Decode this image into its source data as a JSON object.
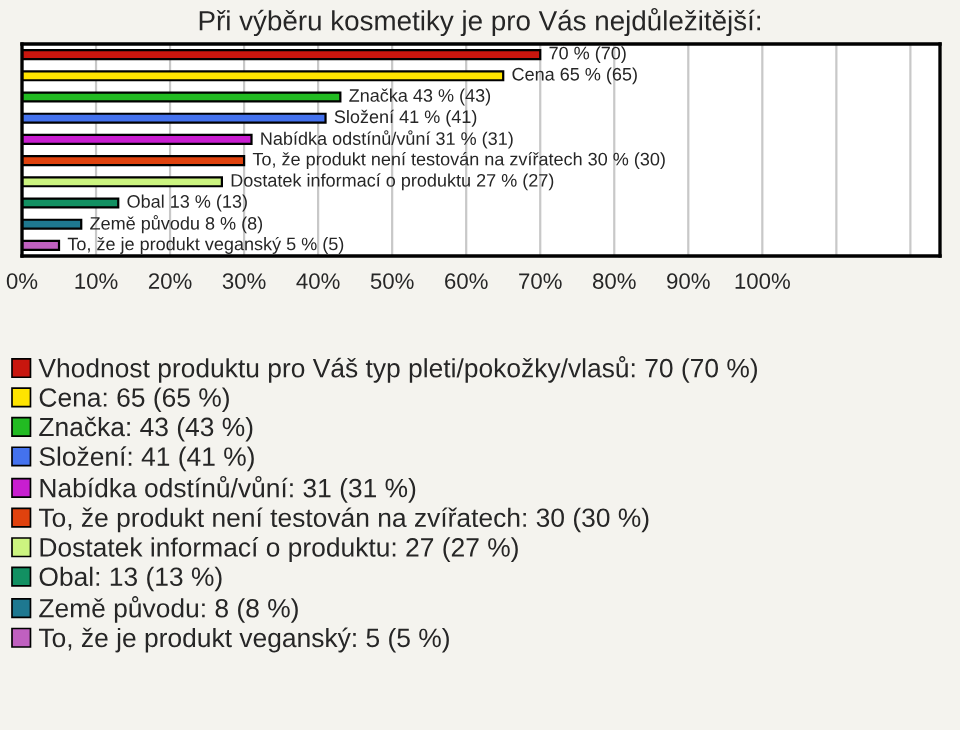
{
  "chart_data": {
    "type": "bar",
    "orientation": "horizontal",
    "title": "Při výběru kosmetiky je pro Vás nejdůležitější:",
    "categories": [
      null,
      null,
      null,
      null,
      null,
      null,
      null,
      null,
      null,
      null
    ],
    "series": [
      {
        "name": "Vhodnost produktu pro Váš typ pleti/pokožky/vlasů: 70 (70 %)",
        "color": "#c8160e",
        "values": [
          70,
          null,
          null,
          null,
          null,
          null,
          null,
          null,
          null,
          null
        ],
        "value_labels": [
          "70 % (70)",
          null,
          null,
          null,
          null,
          null,
          null,
          null,
          null,
          null
        ]
      },
      {
        "name": "Cena: 65 (65 %)",
        "color": "#ffe400",
        "values": [
          null,
          65,
          null,
          null,
          null,
          null,
          null,
          null,
          null,
          null
        ],
        "value_labels": [
          null,
          "Cena 65 % (65)",
          null,
          null,
          null,
          null,
          null,
          null,
          null,
          null
        ]
      },
      {
        "name": "Značka: 43 (43 %)",
        "color": "#22bb22",
        "values": [
          null,
          null,
          43,
          null,
          null,
          null,
          null,
          null,
          null,
          null
        ],
        "value_labels": [
          null,
          null,
          "Značka 43 % (43)",
          null,
          null,
          null,
          null,
          null,
          null,
          null
        ]
      },
      {
        "name": "Složení: 41 (41 %)",
        "color": "#4472ee",
        "values": [
          null,
          null,
          null,
          41,
          null,
          null,
          null,
          null,
          null,
          null
        ],
        "value_labels": [
          null,
          null,
          null,
          "Složení 41 % (41)",
          null,
          null,
          null,
          null,
          null,
          null
        ]
      },
      {
        "name": "Nabídka odstínů/vůní: 31 (31 %)",
        "color": "#c81ed0",
        "values": [
          null,
          null,
          null,
          null,
          31,
          null,
          null,
          null,
          null,
          null
        ],
        "value_labels": [
          null,
          null,
          null,
          null,
          "Nabídka odstínů/vůní 31 % (31)",
          null,
          null,
          null,
          null,
          null
        ]
      },
      {
        "name": "To, že produkt není testován na zvířatech: 30 (30 %)",
        "color": "#e0420e",
        "values": [
          null,
          null,
          null,
          null,
          null,
          30,
          null,
          null,
          null,
          null
        ],
        "value_labels": [
          null,
          null,
          null,
          null,
          null,
          "To, že produkt není testován na zvířatech 30 % (30)",
          null,
          null,
          null,
          null
        ]
      },
      {
        "name": "Dostatek informací o produktu: 27 (27 %)",
        "color": "#ccf480",
        "values": [
          null,
          null,
          null,
          null,
          null,
          null,
          27,
          null,
          null,
          null
        ],
        "value_labels": [
          null,
          null,
          null,
          null,
          null,
          null,
          "Dostatek informací o produktu 27 % (27)",
          null,
          null,
          null
        ]
      },
      {
        "name": "Obal: 13 (13 %)",
        "color": "#129062",
        "values": [
          null,
          null,
          null,
          null,
          null,
          null,
          null,
          13,
          null,
          null
        ],
        "value_labels": [
          null,
          null,
          null,
          null,
          null,
          null,
          null,
          "Obal 13 % (13)",
          null,
          null
        ]
      },
      {
        "name": "Země původu: 8 (8 %)",
        "color": "#1e7890",
        "values": [
          null,
          null,
          null,
          null,
          null,
          null,
          null,
          null,
          8,
          null
        ],
        "value_labels": [
          null,
          null,
          null,
          null,
          null,
          null,
          null,
          null,
          "Země původu 8 % (8)",
          null
        ]
      },
      {
        "name": "To, že je produkt veganský: 5 (5 %)",
        "color": "#c060c0",
        "values": [
          null,
          null,
          null,
          null,
          null,
          null,
          null,
          null,
          null,
          5
        ],
        "value_labels": [
          null,
          null,
          null,
          null,
          null,
          null,
          null,
          null,
          null,
          "To, že je produkt veganský 5 % (5)"
        ]
      }
    ],
    "xlim": [
      0,
      124
    ],
    "xticks": [
      {
        "value": 0,
        "label": "0%"
      },
      {
        "value": 10,
        "label": "10%"
      },
      {
        "value": 20,
        "label": "20%"
      },
      {
        "value": 30,
        "label": "30%"
      },
      {
        "value": 40,
        "label": "40%"
      },
      {
        "value": 50,
        "label": "50%"
      },
      {
        "value": 60,
        "label": "60%"
      },
      {
        "value": 70,
        "label": "70%"
      },
      {
        "value": 80,
        "label": "80%"
      },
      {
        "value": 90,
        "label": "90%"
      },
      {
        "value": 100,
        "label": "100%"
      },
      {
        "value": 110,
        "label": null
      },
      {
        "value": 120,
        "label": null
      }
    ],
    "grid": "x",
    "legend": "bottom"
  }
}
